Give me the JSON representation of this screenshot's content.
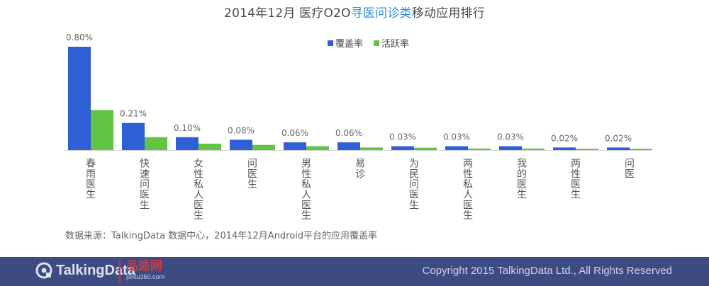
{
  "title": {
    "part1": "2014年12月 医疗O2O",
    "highlight": "寻医问诊类",
    "part2": "移动应用排行"
  },
  "chart_data": {
    "type": "bar",
    "categories": [
      "春雨医生",
      "快速问医生",
      "女性私人医生",
      "问医生",
      "男性私人医生",
      "易诊",
      "为民问医生",
      "两性私人医生",
      "我的医生",
      "两性医生",
      "问医"
    ],
    "series": [
      {
        "name": "覆盖率",
        "color": "#2e5fd6",
        "values": [
          0.8,
          0.21,
          0.1,
          0.08,
          0.06,
          0.06,
          0.03,
          0.03,
          0.03,
          0.02,
          0.02
        ],
        "labels": [
          "0.80%",
          "0.21%",
          "0.10%",
          "0.08%",
          "0.06%",
          "0.06%",
          "0.03%",
          "0.03%",
          "0.03%",
          "0.02%",
          "0.02%"
        ]
      },
      {
        "name": "活跃率",
        "color": "#62c443",
        "values": [
          0.31,
          0.1,
          0.05,
          0.04,
          0.03,
          0.02,
          0.018,
          0.012,
          0.012,
          0.01,
          0.01
        ]
      }
    ],
    "ylim": [
      0,
      0.8
    ],
    "grid": false,
    "legend_position": "top-center"
  },
  "source_text": "数据来源：TalkingData 数据中心，2014年12月Android平台的应用覆盖率",
  "footer": {
    "logo_text": "TalkingData",
    "partner_name": "品途网",
    "partner_url": "pintu360.com",
    "copyright": "Copyright 2015 TalkingData Ltd., All Rights Reserved"
  },
  "colors": {
    "footer_bg": "#3e4a82",
    "title_highlight": "#2f8fd8"
  }
}
